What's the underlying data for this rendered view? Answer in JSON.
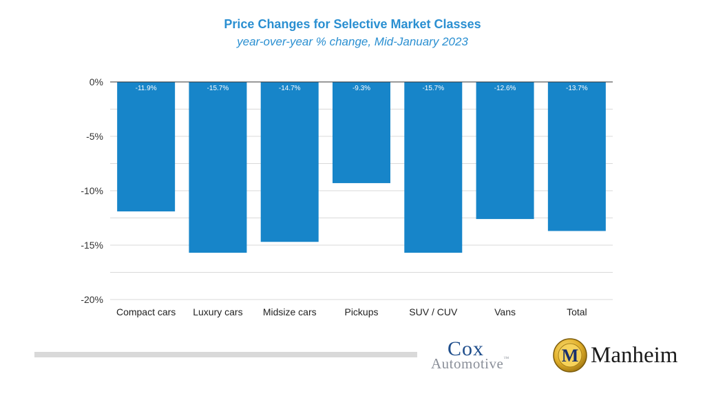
{
  "header": {
    "title": "Price Changes for Selective Market Classes",
    "subtitle": "year-over-year % change, Mid-January 2023"
  },
  "chart_data": {
    "type": "bar",
    "title": "Price Changes for Selective Market Classes",
    "subtitle": "year-over-year % change, Mid-January 2023",
    "xlabel": "",
    "ylabel": "",
    "categories": [
      "Compact cars",
      "Luxury cars",
      "Midsize cars",
      "Pickups",
      "SUV / CUV",
      "Vans",
      "Total"
    ],
    "values": [
      -11.9,
      -15.7,
      -14.7,
      -9.3,
      -15.7,
      -12.6,
      -13.7
    ],
    "data_labels": [
      "-11.9%",
      "-15.7%",
      "-14.7%",
      "-9.3%",
      "-15.7%",
      "-12.6%",
      "-13.7%"
    ],
    "ylim": [
      -20,
      0
    ],
    "yticks": [
      0,
      -5,
      -10,
      -15,
      -20
    ],
    "ytick_labels": [
      "0%",
      "-5%",
      "-10%",
      "-15%",
      "-20%"
    ],
    "grid": true,
    "legend": "none",
    "bar_color": "#1785c9",
    "grid_color": "#d9d9d9"
  },
  "logos": {
    "cox_word": "Cox",
    "cox_sub": "Automotive",
    "cox_tm": "™",
    "manheim_word": "Manheim",
    "manheim_emblem_letter": "M"
  },
  "colors": {
    "title": "#2a8fd1",
    "cox_blue": "#1f4e8c",
    "cox_gray": "#8a8f99",
    "manheim_gold": "#e2b02b"
  }
}
